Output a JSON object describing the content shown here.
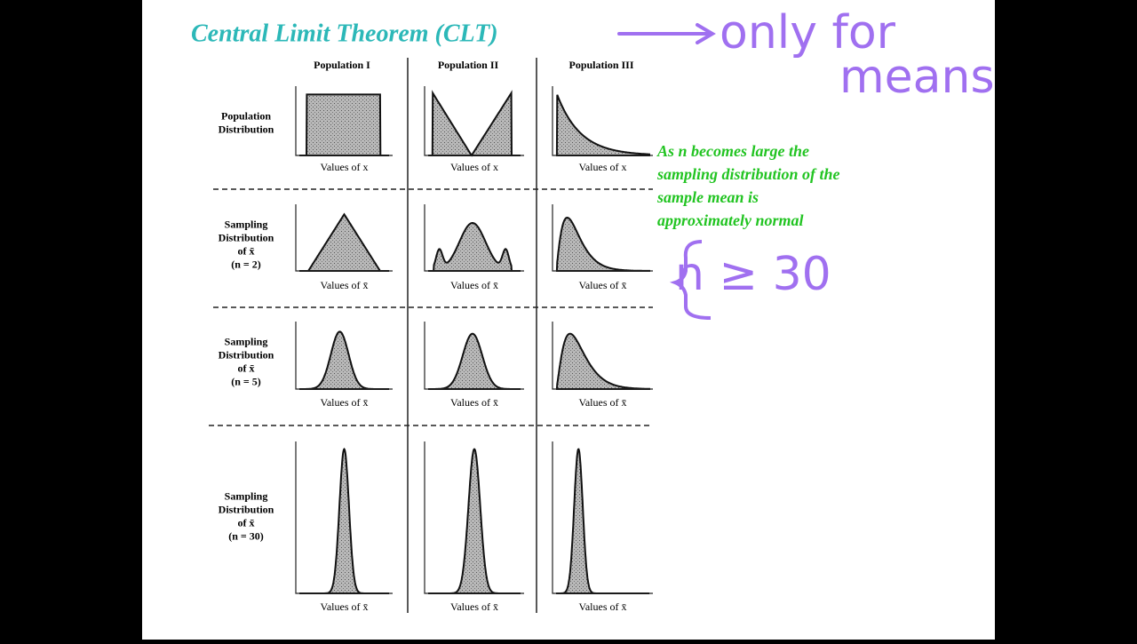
{
  "title": "Central Limit Theorem (CLT)",
  "annotations": {
    "handwritten_top": [
      "only for",
      "means"
    ],
    "handwritten_condition": "n ≥ 30",
    "note": [
      "As n becomes large the",
      "sampling distribution of the",
      "sample mean is",
      "approximately normal"
    ]
  },
  "figure": {
    "columns": [
      "Population I",
      "Population II",
      "Population III"
    ],
    "rows": [
      {
        "label": [
          "Population",
          "Distribution"
        ],
        "axis_labels": [
          "Values of x",
          "Values of x",
          "Values of x"
        ]
      },
      {
        "label": [
          "Sampling",
          "Distribution",
          "of x̄",
          "(n = 2)"
        ],
        "axis_labels": [
          "Values of x̄",
          "Values of x̄",
          "Values of x̄"
        ]
      },
      {
        "label": [
          "Sampling",
          "Distribution",
          "of x̄",
          "(n = 5)"
        ],
        "axis_labels": [
          "Values of x̄",
          "Values of x̄",
          "Values of x̄"
        ]
      },
      {
        "label": [
          "Sampling",
          "Distribution",
          "of x̄",
          "(n = 30)"
        ],
        "axis_labels": [
          "Values of x̄",
          "Values of x̄",
          "Values of x̄"
        ]
      }
    ]
  }
}
